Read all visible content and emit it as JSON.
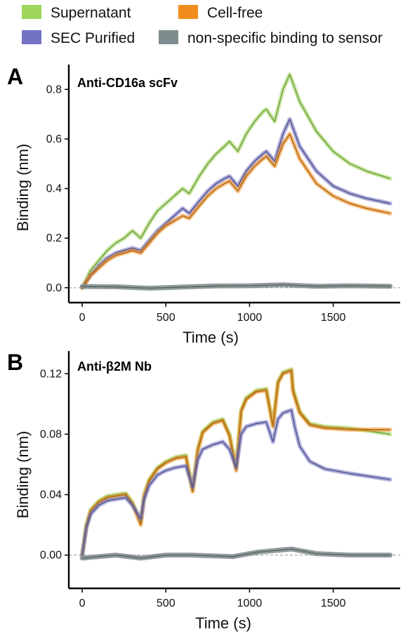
{
  "legend": {
    "items": [
      {
        "label": "Supernatant",
        "color": "#9DD65A"
      },
      {
        "label": "Cell-free",
        "color": "#F08C1C"
      },
      {
        "label": "SEC Purified",
        "color": "#7273C3"
      },
      {
        "label": "non-specific binding to sensor",
        "color": "#7F8C8D"
      }
    ]
  },
  "chart_data": [
    {
      "type": "line",
      "panel_letter": "A",
      "title": "Anti-CD16a scFv",
      "xlabel": "Time (s)",
      "ylabel": "Binding (nm)",
      "xlim": [
        -80,
        1900
      ],
      "ylim": [
        -0.06,
        0.9
      ],
      "xticks": [
        0,
        500,
        1000,
        1500
      ],
      "yticks": [
        0.0,
        0.2,
        0.4,
        0.6,
        0.8
      ],
      "ytick_labels": [
        "0.0",
        "0.2",
        "0.4",
        "0.6",
        "0.8"
      ],
      "baseline": 0,
      "series": [
        {
          "name": "Supernatant",
          "color": "#9DD65A",
          "x": [
            0,
            50,
            100,
            150,
            200,
            250,
            300,
            350,
            400,
            450,
            500,
            550,
            600,
            640,
            700,
            750,
            800,
            850,
            880,
            930,
            980,
            1030,
            1080,
            1100,
            1150,
            1200,
            1240,
            1300,
            1400,
            1500,
            1600,
            1700,
            1840
          ],
          "y": [
            0,
            0.07,
            0.11,
            0.15,
            0.18,
            0.2,
            0.23,
            0.2,
            0.26,
            0.31,
            0.34,
            0.37,
            0.4,
            0.38,
            0.45,
            0.5,
            0.54,
            0.57,
            0.59,
            0.55,
            0.62,
            0.67,
            0.71,
            0.72,
            0.67,
            0.8,
            0.86,
            0.75,
            0.63,
            0.55,
            0.5,
            0.47,
            0.44
          ]
        },
        {
          "name": "SEC Purified",
          "color": "#7273C3",
          "x": [
            0,
            50,
            100,
            150,
            200,
            250,
            300,
            350,
            400,
            450,
            500,
            550,
            600,
            640,
            700,
            750,
            800,
            850,
            880,
            930,
            980,
            1030,
            1080,
            1100,
            1150,
            1200,
            1240,
            1300,
            1400,
            1500,
            1600,
            1700,
            1840
          ],
          "y": [
            0,
            0.05,
            0.09,
            0.12,
            0.14,
            0.15,
            0.16,
            0.15,
            0.19,
            0.23,
            0.26,
            0.29,
            0.32,
            0.3,
            0.35,
            0.39,
            0.42,
            0.44,
            0.45,
            0.41,
            0.47,
            0.51,
            0.54,
            0.55,
            0.51,
            0.62,
            0.68,
            0.57,
            0.47,
            0.41,
            0.38,
            0.36,
            0.34
          ]
        },
        {
          "name": "Cell-free",
          "color": "#F08C1C",
          "x": [
            0,
            50,
            100,
            150,
            200,
            250,
            300,
            350,
            400,
            450,
            500,
            550,
            600,
            640,
            700,
            750,
            800,
            850,
            880,
            930,
            980,
            1030,
            1080,
            1100,
            1150,
            1200,
            1240,
            1300,
            1400,
            1500,
            1600,
            1700,
            1840
          ],
          "y": [
            0,
            0.05,
            0.08,
            0.11,
            0.13,
            0.14,
            0.15,
            0.14,
            0.18,
            0.22,
            0.25,
            0.27,
            0.29,
            0.28,
            0.33,
            0.37,
            0.4,
            0.42,
            0.43,
            0.39,
            0.45,
            0.49,
            0.52,
            0.53,
            0.49,
            0.58,
            0.62,
            0.52,
            0.42,
            0.37,
            0.34,
            0.32,
            0.3
          ]
        },
        {
          "name": "non-specific binding to sensor",
          "color": "#7F8C8D",
          "x": [
            0,
            200,
            400,
            600,
            800,
            1000,
            1200,
            1400,
            1600,
            1840
          ],
          "y": [
            0.005,
            0.004,
            -0.002,
            0.003,
            0.007,
            0.008,
            0.012,
            0.006,
            0.008,
            0.006
          ]
        }
      ]
    },
    {
      "type": "line",
      "panel_letter": "B",
      "title": "Anti-β2M Nb",
      "xlabel": "Time (s)",
      "ylabel": "Binding (nm)",
      "xlim": [
        -80,
        1900
      ],
      "ylim": [
        -0.022,
        0.135
      ],
      "xticks": [
        0,
        500,
        1000,
        1500
      ],
      "yticks": [
        0.0,
        0.04,
        0.08,
        0.12
      ],
      "ytick_labels": [
        "0.00",
        "0.04",
        "0.08",
        "0.12"
      ],
      "baseline": 0,
      "series": [
        {
          "name": "Supernatant",
          "color": "#9DD65A",
          "x": [
            0,
            25,
            50,
            100,
            150,
            200,
            260,
            300,
            350,
            370,
            400,
            450,
            500,
            560,
            620,
            660,
            690,
            720,
            780,
            840,
            880,
            920,
            950,
            980,
            1040,
            1100,
            1140,
            1170,
            1200,
            1250,
            1260,
            1300,
            1360,
            1450,
            1600,
            1840
          ],
          "y": [
            0,
            0.02,
            0.03,
            0.036,
            0.039,
            0.04,
            0.041,
            0.035,
            0.022,
            0.04,
            0.05,
            0.058,
            0.062,
            0.065,
            0.066,
            0.043,
            0.07,
            0.082,
            0.088,
            0.09,
            0.08,
            0.058,
            0.096,
            0.104,
            0.109,
            0.11,
            0.086,
            0.115,
            0.121,
            0.123,
            0.11,
            0.095,
            0.087,
            0.085,
            0.084,
            0.08
          ]
        },
        {
          "name": "Cell-free",
          "color": "#F08C1C",
          "x": [
            0,
            25,
            50,
            100,
            150,
            200,
            260,
            300,
            350,
            370,
            400,
            450,
            500,
            560,
            620,
            660,
            690,
            720,
            780,
            840,
            880,
            920,
            950,
            980,
            1040,
            1100,
            1140,
            1170,
            1200,
            1250,
            1260,
            1300,
            1360,
            1450,
            1600,
            1840
          ],
          "y": [
            0,
            0.019,
            0.029,
            0.035,
            0.038,
            0.039,
            0.04,
            0.034,
            0.02,
            0.039,
            0.049,
            0.057,
            0.061,
            0.064,
            0.065,
            0.042,
            0.069,
            0.081,
            0.087,
            0.089,
            0.079,
            0.056,
            0.095,
            0.103,
            0.108,
            0.109,
            0.085,
            0.114,
            0.12,
            0.122,
            0.108,
            0.094,
            0.086,
            0.084,
            0.083,
            0.083
          ]
        },
        {
          "name": "SEC Purified",
          "color": "#7273C3",
          "x": [
            0,
            25,
            50,
            100,
            150,
            200,
            260,
            300,
            350,
            370,
            400,
            450,
            500,
            560,
            620,
            660,
            690,
            720,
            780,
            840,
            880,
            920,
            950,
            980,
            1040,
            1100,
            1140,
            1170,
            1200,
            1250,
            1270,
            1300,
            1360,
            1450,
            1600,
            1840
          ],
          "y": [
            0,
            0.018,
            0.027,
            0.033,
            0.036,
            0.037,
            0.038,
            0.033,
            0.024,
            0.037,
            0.046,
            0.053,
            0.056,
            0.058,
            0.059,
            0.045,
            0.063,
            0.07,
            0.073,
            0.075,
            0.07,
            0.058,
            0.08,
            0.085,
            0.087,
            0.088,
            0.075,
            0.09,
            0.094,
            0.096,
            0.085,
            0.072,
            0.062,
            0.057,
            0.054,
            0.05
          ]
        },
        {
          "name": "non-specific binding to sensor",
          "color": "#7F8C8D",
          "x": [
            0,
            200,
            350,
            500,
            650,
            900,
            1050,
            1250,
            1400,
            1600,
            1840
          ],
          "y": [
            -0.002,
            0.0,
            -0.002,
            0.0,
            0.0,
            -0.001,
            0.002,
            0.004,
            0.001,
            0.0,
            0.0
          ]
        }
      ]
    }
  ]
}
